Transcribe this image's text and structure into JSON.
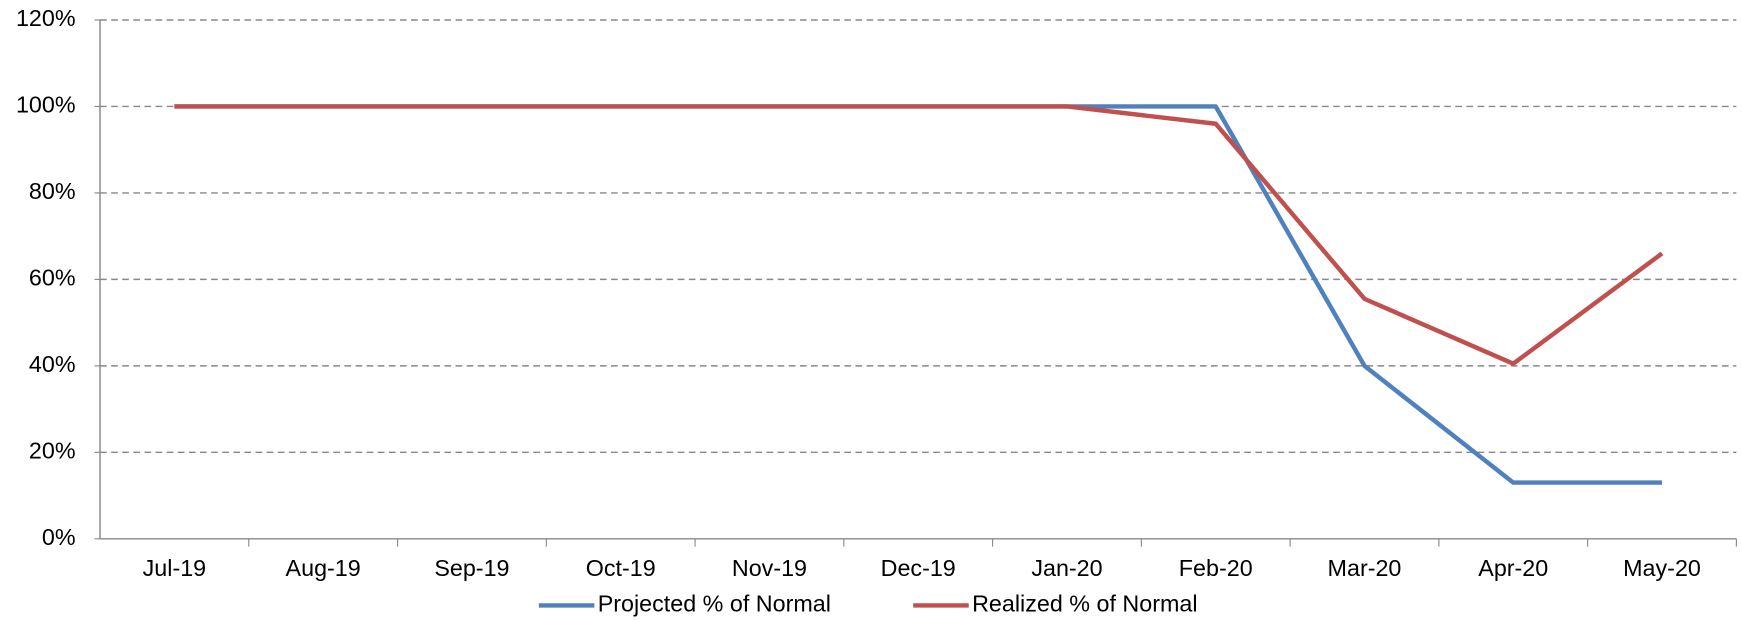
{
  "chart_data": {
    "type": "line",
    "categories": [
      "Jul-19",
      "Aug-19",
      "Sep-19",
      "Oct-19",
      "Nov-19",
      "Dec-19",
      "Jan-20",
      "Feb-20",
      "Mar-20",
      "Apr-20",
      "May-20"
    ],
    "series": [
      {
        "name": "Projected % of Normal",
        "color": "#4f81bd",
        "values": [
          100,
          100,
          100,
          100,
          100,
          100,
          100,
          100,
          40,
          13,
          13
        ]
      },
      {
        "name": "Realized % of Normal",
        "color": "#c0504d",
        "values": [
          100,
          100,
          100,
          100,
          100,
          100,
          100,
          96,
          55.5,
          40.5,
          66
        ]
      }
    ],
    "ylim": [
      0,
      120
    ],
    "yticks": [
      {
        "value": 0,
        "label": "0%"
      },
      {
        "value": 20,
        "label": "20%"
      },
      {
        "value": 40,
        "label": "40%"
      },
      {
        "value": 60,
        "label": "60%"
      },
      {
        "value": 80,
        "label": "80%"
      },
      {
        "value": 100,
        "label": "100%"
      },
      {
        "value": 120,
        "label": "120%"
      }
    ],
    "grid": true,
    "legend": "bottom"
  }
}
